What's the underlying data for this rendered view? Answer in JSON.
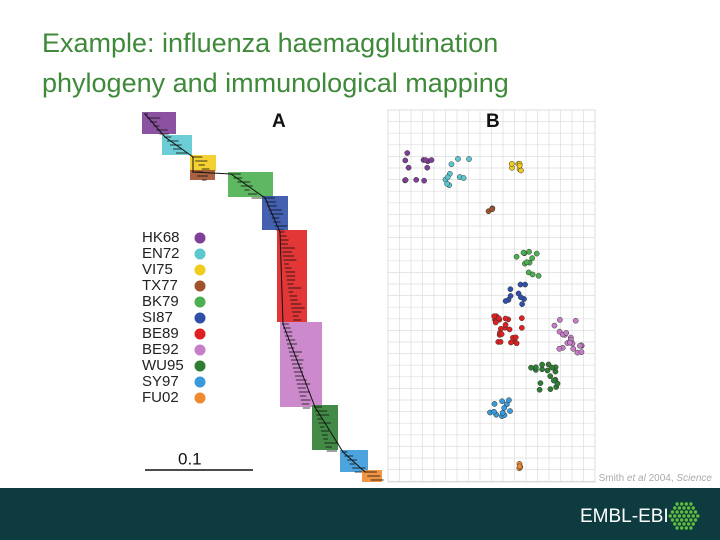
{
  "header": {
    "title_lines": [
      "Example: influenza haemagglutination",
      "phylogeny and immunological mapping"
    ]
  },
  "figure": {
    "panel_a": "A",
    "panel_b": "B",
    "scale": "0.1",
    "legend": [
      {
        "label": "HK68",
        "color": "#7f3f98"
      },
      {
        "label": "EN72",
        "color": "#5bc8d0"
      },
      {
        "label": "VI75",
        "color": "#f2cc1c"
      },
      {
        "label": "TX77",
        "color": "#a0522d"
      },
      {
        "label": "BK79",
        "color": "#4caf50"
      },
      {
        "label": "SI87",
        "color": "#2f4fa8"
      },
      {
        "label": "BE89",
        "color": "#e02020"
      },
      {
        "label": "BE92",
        "color": "#c77dc7"
      },
      {
        "label": "WU95",
        "color": "#2e7d32"
      },
      {
        "label": "SY97",
        "color": "#3a9ad9"
      },
      {
        "label": "FU02",
        "color": "#f08a30"
      }
    ]
  },
  "citation": {
    "author": "Smith",
    "etal": "et al",
    "year": "2004,",
    "journal": "Science"
  },
  "footer": {
    "brand": "EMBL-EBI"
  }
}
